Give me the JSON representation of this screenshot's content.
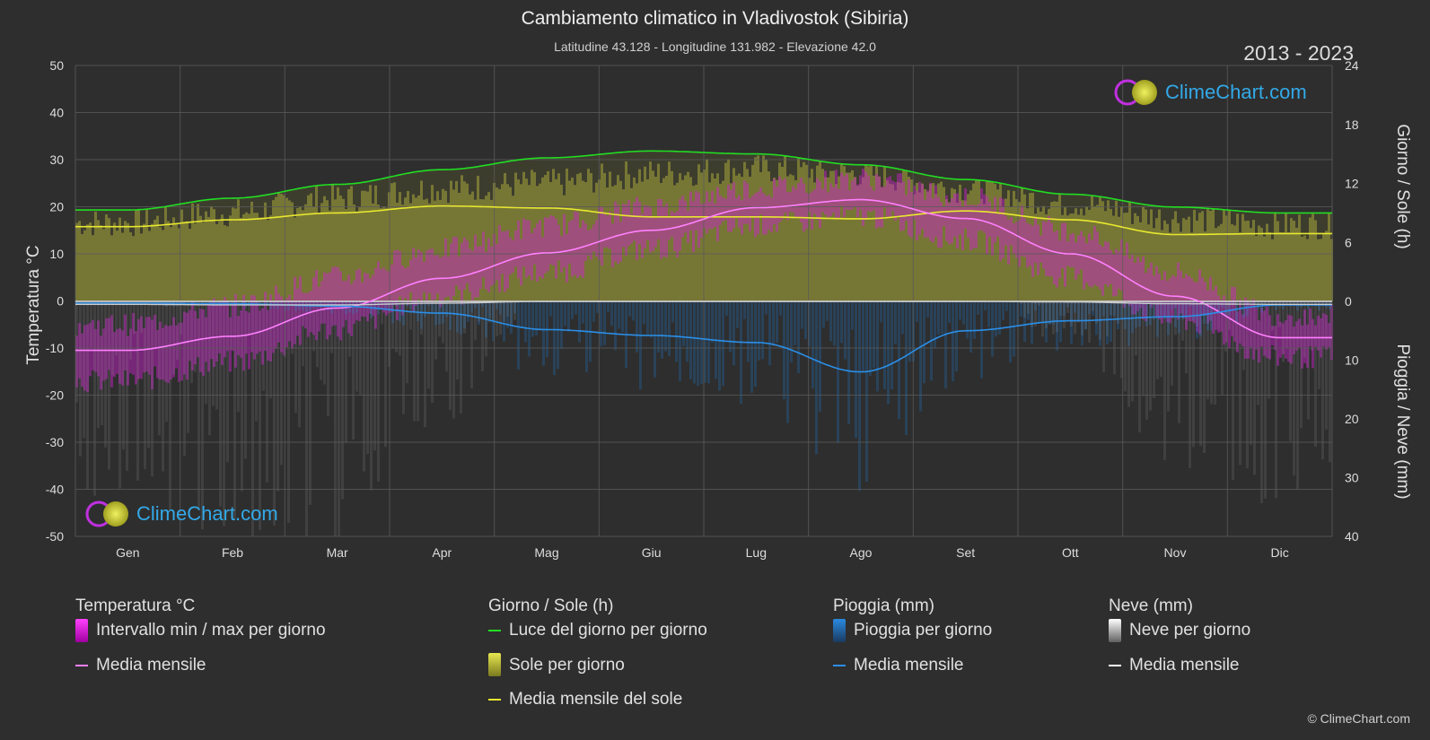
{
  "header": {
    "title": "Cambiamento climatico in Vladivostok (Sibiria)",
    "subtitle": "Latitudine 43.128 - Longitudine 131.982 - Elevazione 42.0",
    "years": "2013 - 2023"
  },
  "axes": {
    "left_title": "Temperatura °C",
    "right_title_top": "Giorno / Sole (h)",
    "right_title_bottom": "Pioggia / Neve (mm)"
  },
  "logo_text": "ClimeChart.com",
  "copyright": "© ClimeChart.com",
  "legend": {
    "temp": {
      "head": "Temperatura °C",
      "range": "Intervallo min / max per giorno",
      "mean": "Media mensile"
    },
    "sun": {
      "head": "Giorno / Sole (h)",
      "daylight": "Luce del giorno per giorno",
      "sunbar": "Sole per giorno",
      "mean": "Media mensile del sole"
    },
    "rain": {
      "head": "Pioggia (mm)",
      "bar": "Pioggia per giorno",
      "mean": "Media mensile"
    },
    "snow": {
      "head": "Neve (mm)",
      "bar": "Neve per giorno",
      "mean": "Media mensile"
    }
  },
  "colors": {
    "background": "#2e2e2e",
    "temp_range": "#d020d0",
    "temp_mean": "#ff80ff",
    "daylight": "#22dd22",
    "sun": "#c8c840",
    "sun_mean": "#e8e830",
    "rain": "#1e78c8",
    "rain_mean": "#2b8fe8",
    "snow": "#a0a0a0",
    "snow_mean": "#ffffff"
  },
  "chart_data": {
    "type": "line",
    "months": [
      "Gen",
      "Feb",
      "Mar",
      "Apr",
      "Mag",
      "Giu",
      "Lug",
      "Ago",
      "Set",
      "Ott",
      "Nov",
      "Dic"
    ],
    "left_axis": {
      "label": "Temperatura °C",
      "range": [
        -50,
        50
      ],
      "ticks": [
        50,
        40,
        30,
        20,
        10,
        0,
        -10,
        -20,
        -30,
        -40,
        -50
      ]
    },
    "right_axis_top": {
      "label": "Giorno / Sole (h)",
      "range": [
        0,
        24
      ],
      "ticks": [
        24,
        18,
        12,
        6,
        0
      ]
    },
    "right_axis_bottom": {
      "label": "Pioggia / Neve (mm)",
      "range": [
        0,
        40
      ],
      "ticks": [
        0,
        10,
        20,
        30,
        40
      ]
    },
    "grid": true,
    "series": [
      {
        "name": "Media mensile",
        "group": "Temperatura °C",
        "unit": "°C",
        "values": [
          -10.5,
          -7.5,
          -1.5,
          4.8,
          10.2,
          15.0,
          19.8,
          21.5,
          17.5,
          10.0,
          1.0,
          -7.8
        ]
      },
      {
        "name": "Intervallo min / max per giorno (max)",
        "group": "Temperatura °C",
        "unit": "°C",
        "values": [
          -5,
          -1,
          5,
          11,
          16,
          20,
          24,
          26,
          22,
          15,
          6,
          -3
        ]
      },
      {
        "name": "Intervallo min / max per giorno (min)",
        "group": "Temperatura °C",
        "unit": "°C",
        "values": [
          -17,
          -13,
          -6,
          1,
          6,
          11,
          16,
          18,
          13,
          5,
          -4,
          -12
        ]
      },
      {
        "name": "Luce del giorno per giorno",
        "group": "Giorno / Sole (h)",
        "unit": "h",
        "values": [
          9.3,
          10.5,
          11.9,
          13.4,
          14.6,
          15.3,
          15.0,
          13.9,
          12.4,
          10.9,
          9.6,
          9.0
        ]
      },
      {
        "name": "Sole per giorno",
        "group": "Giorno / Sole (h)",
        "unit": "h",
        "values": [
          8.0,
          9.0,
          10.5,
          11.5,
          12.0,
          13.0,
          13.5,
          13.0,
          11.5,
          10.0,
          8.5,
          7.8
        ]
      },
      {
        "name": "Media mensile del sole",
        "group": "Giorno / Sole (h)",
        "unit": "h",
        "values": [
          7.6,
          8.3,
          9.0,
          9.7,
          9.5,
          8.6,
          8.6,
          8.4,
          9.2,
          8.3,
          6.8,
          6.9
        ]
      },
      {
        "name": "Pioggia media mensile",
        "group": "Pioggia (mm)",
        "unit": "mm",
        "values": [
          0.3,
          0.4,
          0.8,
          2.0,
          4.8,
          5.8,
          7.0,
          12.0,
          5.0,
          3.3,
          2.6,
          0.6
        ]
      },
      {
        "name": "Neve media mensile",
        "group": "Neve (mm)",
        "unit": "mm",
        "values": [
          0.5,
          0.6,
          0.6,
          0.3,
          0.0,
          0.0,
          0.0,
          0.0,
          0.0,
          0.1,
          0.4,
          0.5
        ]
      }
    ]
  }
}
